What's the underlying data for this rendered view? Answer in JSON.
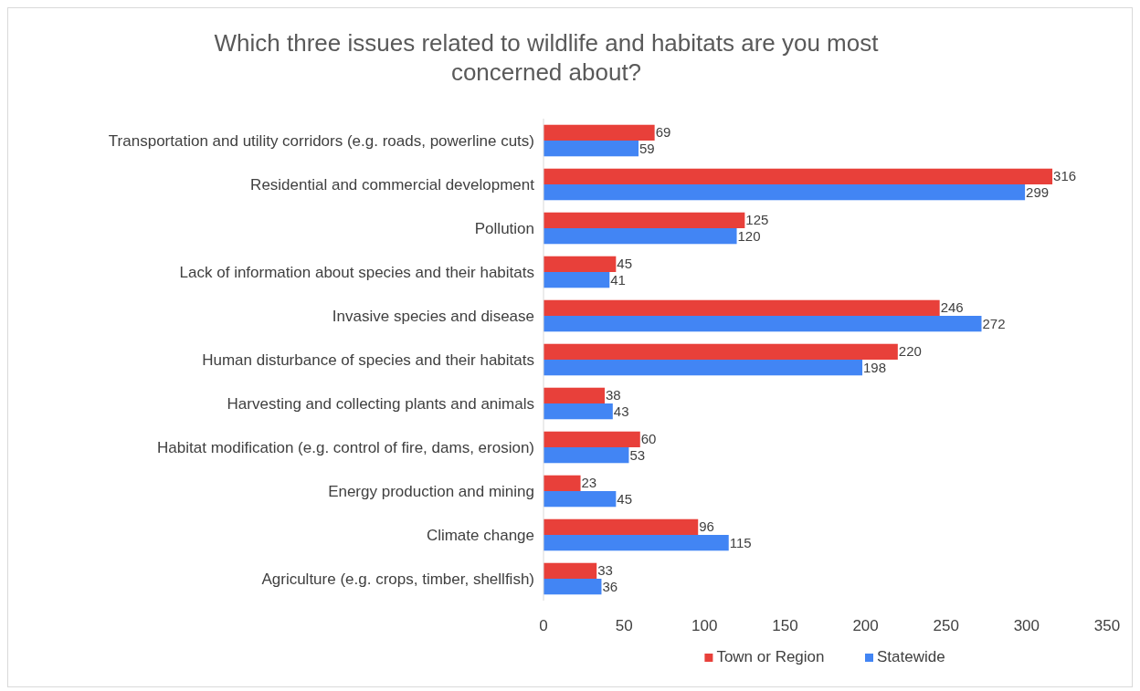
{
  "chart_data": {
    "type": "bar",
    "orientation": "horizontal",
    "title": "Which three issues related to wildlife and habitats are you most concerned about?",
    "categories": [
      "Transportation and utility corridors (e.g. roads, powerline cuts)",
      "Residential and commercial development",
      "Pollution",
      "Lack of information about species and their habitats",
      "Invasive species and disease",
      "Human disturbance of species and their habitats",
      "Harvesting and collecting plants and animals",
      "Habitat modification (e.g. control of fire, dams, erosion)",
      "Energy production and mining",
      "Climate change",
      "Agriculture (e.g. crops, timber, shellfish)"
    ],
    "series": [
      {
        "name": "Town or Region",
        "color": "#e8403a",
        "values": [
          69,
          316,
          125,
          45,
          246,
          220,
          38,
          60,
          23,
          96,
          33
        ]
      },
      {
        "name": "Statewide",
        "color": "#4285f4",
        "values": [
          59,
          299,
          120,
          41,
          272,
          198,
          43,
          53,
          45,
          115,
          36
        ]
      }
    ],
    "xlim": [
      0,
      350
    ],
    "xticks": [
      0,
      50,
      100,
      150,
      200,
      250,
      300,
      350
    ],
    "data_labels": true,
    "legend": "bottom",
    "grid": false
  }
}
